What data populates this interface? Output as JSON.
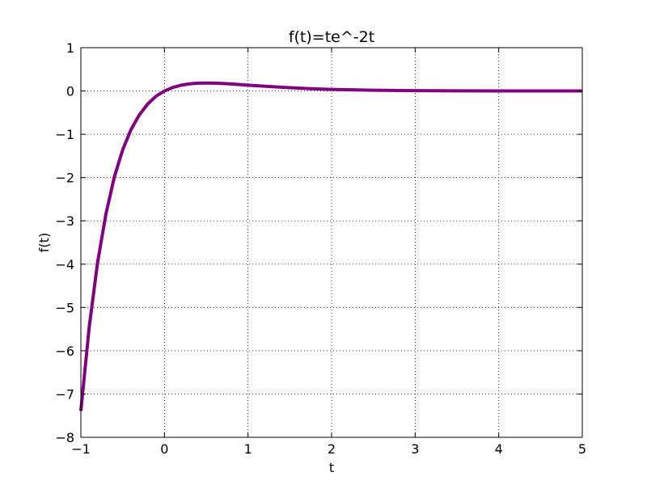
{
  "chart_data": {
    "type": "line",
    "title": "f(t)=te^-2t",
    "xlabel": "t",
    "ylabel": "f(t)",
    "xlim": [
      -1,
      5
    ],
    "ylim": [
      -8,
      1
    ],
    "x_ticks": [
      -1,
      0,
      1,
      2,
      3,
      4,
      5
    ],
    "y_ticks": [
      -8,
      -7,
      -6,
      -5,
      -4,
      -3,
      -2,
      -1,
      0,
      1
    ],
    "x_tick_labels": [
      "−1",
      "0",
      "1",
      "2",
      "3",
      "4",
      "5"
    ],
    "y_tick_labels": [
      "−8",
      "−7",
      "−6",
      "−5",
      "−4",
      "−3",
      "−2",
      "−1",
      "0",
      "1"
    ],
    "grid": true,
    "series": [
      {
        "color": "#800080",
        "x": [
          -1.0,
          -0.9,
          -0.8,
          -0.7,
          -0.6,
          -0.5,
          -0.4,
          -0.3,
          -0.2,
          -0.1,
          0.0,
          0.1,
          0.2,
          0.3,
          0.4,
          0.5,
          0.6,
          0.7,
          0.8,
          0.9,
          1.0,
          1.25,
          1.5,
          1.75,
          2.0,
          2.5,
          3.0,
          3.5,
          4.0,
          4.5,
          5.0
        ],
        "y": [
          -7.39,
          -5.45,
          -3.96,
          -2.84,
          -1.99,
          -1.36,
          -0.89,
          -0.55,
          -0.3,
          -0.12,
          0.0,
          0.082,
          0.134,
          0.165,
          0.18,
          0.184,
          0.181,
          0.173,
          0.161,
          0.149,
          0.135,
          0.103,
          0.075,
          0.053,
          0.037,
          0.017,
          0.007,
          0.003,
          0.001,
          0.0006,
          0.0002
        ]
      }
    ]
  }
}
